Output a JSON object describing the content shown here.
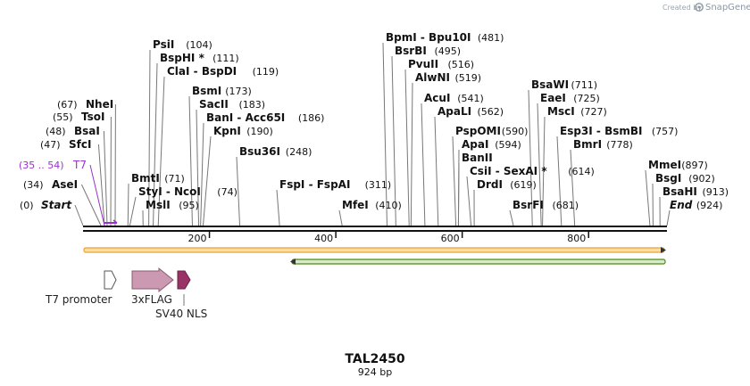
{
  "credit": {
    "text": "Created by",
    "brand": "SnapGene"
  },
  "plasmid": {
    "name": "TAL2450",
    "length_label": "924 bp"
  },
  "map_length": 924,
  "axis": {
    "ticks": [
      {
        "value": 200,
        "label": "200"
      },
      {
        "value": 400,
        "label": "400"
      },
      {
        "value": 600,
        "label": "600"
      },
      {
        "value": 800,
        "label": "800"
      }
    ]
  },
  "left_sites": [
    {
      "name": "NheI",
      "pos": "(67)",
      "at": 67
    },
    {
      "name": "TsoI",
      "pos": "(55)",
      "at": 55
    },
    {
      "name": "BsaI",
      "pos": "(48)",
      "at": 48
    },
    {
      "name": "SfcI",
      "pos": "(47)",
      "at": 47
    },
    {
      "name": "T7",
      "pos": "(35 .. 54)",
      "at": 35,
      "primer": true
    },
    {
      "name": "AseI",
      "pos": "(34)",
      "at": 34
    },
    {
      "name": "Start",
      "pos": "(0)",
      "at": 0,
      "italic": true
    }
  ],
  "right_sites": [
    {
      "name": "PsiI",
      "pos": "(104)",
      "at": 104
    },
    {
      "name": "BspHI *",
      "pos": "(111)",
      "at": 111
    },
    {
      "name": "ClaI - BspDI",
      "pos": "(119)",
      "at": 119
    },
    {
      "name": "BsmI",
      "pos": "(173)",
      "at": 173
    },
    {
      "name": "SacII",
      "pos": "(183)",
      "at": 183
    },
    {
      "name": "BanI - Acc65I",
      "pos": "(186)",
      "at": 186
    },
    {
      "name": "KpnI",
      "pos": "(190)",
      "at": 190
    },
    {
      "name": "Bsu36I",
      "pos": "(248)",
      "at": 248
    },
    {
      "name": "BmtI",
      "pos": "(71)",
      "at": 71
    },
    {
      "name": "StyI - NcoI",
      "pos": "(74)",
      "at": 74
    },
    {
      "name": "MslI",
      "pos": "(95)",
      "at": 95
    },
    {
      "name": "FspI - FspAI",
      "pos": "(311)",
      "at": 311
    },
    {
      "name": "BpmI - Bpu10I",
      "pos": "(481)",
      "at": 481
    },
    {
      "name": "BsrBI",
      "pos": "(495)",
      "at": 495
    },
    {
      "name": "PvuII",
      "pos": "(516)",
      "at": 516
    },
    {
      "name": "AlwNI",
      "pos": "(519)",
      "at": 519
    },
    {
      "name": "AcuI",
      "pos": "(541)",
      "at": 541
    },
    {
      "name": "ApaLI",
      "pos": "(562)",
      "at": 562
    },
    {
      "name": "PspOMI",
      "pos": "(590)",
      "at": 590
    },
    {
      "name": "ApaI",
      "pos": "(594)",
      "at": 594
    },
    {
      "name": "BanII",
      "pos": "",
      "at": 594
    },
    {
      "name": "CsiI - SexAI *",
      "pos": "(614)",
      "at": 614
    },
    {
      "name": "DrdI",
      "pos": "(619)",
      "at": 619
    },
    {
      "name": "MfeI",
      "pos": "(410)",
      "at": 410
    },
    {
      "name": "BsrFI",
      "pos": "(681)",
      "at": 681
    },
    {
      "name": "BsaWI",
      "pos": "(711)",
      "at": 711
    },
    {
      "name": "EaeI",
      "pos": "(725)",
      "at": 725
    },
    {
      "name": "MscI",
      "pos": "(727)",
      "at": 727
    },
    {
      "name": "Esp3I - BsmBI",
      "pos": "(757)",
      "at": 757
    },
    {
      "name": "BmrI",
      "pos": "(778)",
      "at": 778
    },
    {
      "name": "MmeI",
      "pos": "(897)",
      "at": 897
    },
    {
      "name": "BsgI",
      "pos": "(902)",
      "at": 902
    },
    {
      "name": "BsaHI",
      "pos": "(913)",
      "at": 913
    },
    {
      "name": "End",
      "pos": "(924)",
      "at": 924,
      "italic": true
    }
  ],
  "features": [
    {
      "name": "T7 promoter",
      "color": "#ffffff",
      "stroke": "#555555",
      "at": 35,
      "end": 54
    },
    {
      "name": "3xFLAG",
      "color": "#cc99b2",
      "stroke": "#8a5a70",
      "at": 80,
      "end": 146
    },
    {
      "name": "SV40 NLS",
      "color": "#993366",
      "stroke": "#6b1f45",
      "at": 152,
      "end": 173
    }
  ],
  "orf_colors": {
    "forward": "#e8a33a",
    "reverse": "#4a8a1a"
  },
  "primer_color": "#9933cc"
}
